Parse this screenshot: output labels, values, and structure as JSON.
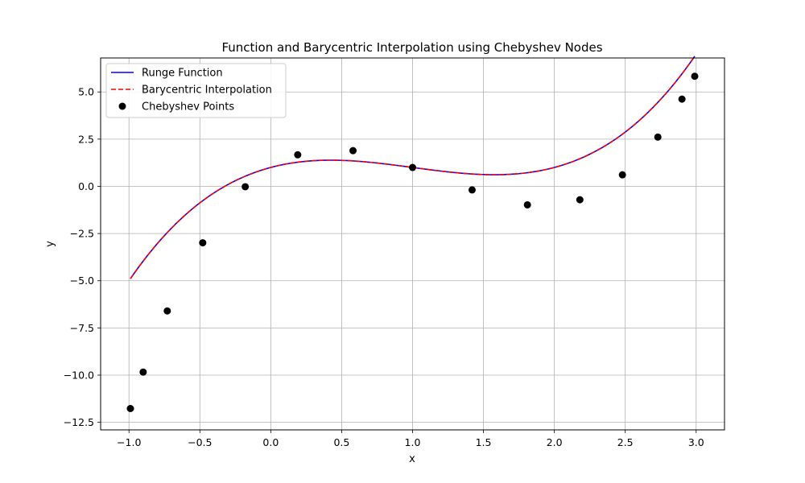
{
  "chart_data": {
    "type": "line",
    "title": "Function and Barycentric Interpolation using Chebyshev Nodes",
    "xlabel": "x",
    "ylabel": "y",
    "xlim": [
      -1.2,
      3.2
    ],
    "ylim": [
      -12.9,
      6.8
    ],
    "grid": true,
    "legend_position": "top-left",
    "x_ticks": [
      -1.0,
      -0.5,
      0.0,
      0.5,
      1.0,
      1.5,
      2.0,
      2.5,
      3.0
    ],
    "x_tick_labels": [
      "−1.0",
      "−0.5",
      "0.0",
      "0.5",
      "1.0",
      "1.5",
      "2.0",
      "2.5",
      "3.0"
    ],
    "y_ticks": [
      -12.5,
      -10.0,
      -7.5,
      -5.0,
      -2.5,
      0.0,
      2.5,
      5.0
    ],
    "y_tick_labels": [
      "−12.5",
      "−10.0",
      "−7.5",
      "−5.0",
      "−2.5",
      "0.0",
      "2.5",
      "5.0"
    ],
    "series": [
      {
        "name": "Runge Function",
        "kind": "line",
        "color": "#0000ff",
        "style": "solid",
        "function": "x^3 - 3x^2 + 2x + 1",
        "x_range": [
          -0.99,
          2.99
        ]
      },
      {
        "name": "Barycentric Interpolation",
        "kind": "line",
        "color": "#ff0000",
        "style": "dashed",
        "function": "x^3 - 3x^2 + 2x + 1",
        "x_range": [
          -0.99,
          2.99
        ]
      },
      {
        "name": "Chebyshev Points",
        "kind": "scatter",
        "color": "#000000",
        "x": [
          -0.99,
          -0.9,
          -0.73,
          -0.48,
          -0.18,
          0.19,
          0.58,
          1.0,
          1.42,
          1.81,
          2.18,
          2.48,
          2.73,
          2.9,
          2.99
        ],
        "y": [
          -11.77,
          -9.84,
          -6.6,
          -2.99,
          -0.02,
          1.67,
          1.89,
          1.0,
          -0.19,
          -0.98,
          -0.71,
          0.61,
          2.61,
          4.62,
          5.83
        ]
      }
    ]
  }
}
